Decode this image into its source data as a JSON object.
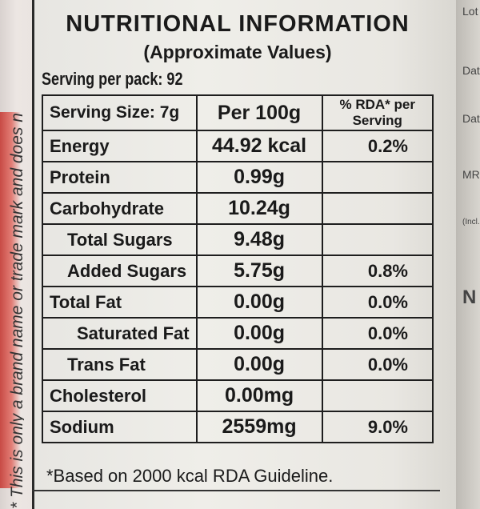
{
  "side_text": "* This is only a brand name or trade mark and does n",
  "title": "NUTRITIONAL INFORMATION",
  "subtitle": "(Approximate Values)",
  "serving_per_pack": "Serving per pack: 92",
  "table": {
    "headers": [
      "Serving Size: 7g",
      "Per 100g",
      "% RDA* per Serving"
    ],
    "rows": [
      {
        "name": "Energy",
        "per100": "44.92 kcal",
        "rda": "0.2%",
        "indent": 0
      },
      {
        "name": "Protein",
        "per100": "0.99g",
        "rda": "",
        "indent": 0
      },
      {
        "name": "Carbohydrate",
        "per100": "10.24g",
        "rda": "",
        "indent": 0
      },
      {
        "name": "Total Sugars",
        "per100": "9.48g",
        "rda": "",
        "indent": 1
      },
      {
        "name": "Added Sugars",
        "per100": "5.75g",
        "rda": "0.8%",
        "indent": 1
      },
      {
        "name": "Total Fat",
        "per100": "0.00g",
        "rda": "0.0%",
        "indent": 0
      },
      {
        "name": "Saturated Fat",
        "per100": "0.00g",
        "rda": "0.0%",
        "indent": 2
      },
      {
        "name": "Trans Fat",
        "per100": "0.00g",
        "rda": "0.0%",
        "indent": 1
      },
      {
        "name": "Cholesterol",
        "per100": "0.00mg",
        "rda": "",
        "indent": 0
      },
      {
        "name": "Sodium",
        "per100": "2559mg",
        "rda": "9.0%",
        "indent": 0
      }
    ]
  },
  "footnote": "*Based on 2000 kcal RDA Guideline.",
  "right_panel": [
    "Lot",
    "Dat",
    "Dat",
    "MR",
    "(Incl.",
    "N"
  ]
}
